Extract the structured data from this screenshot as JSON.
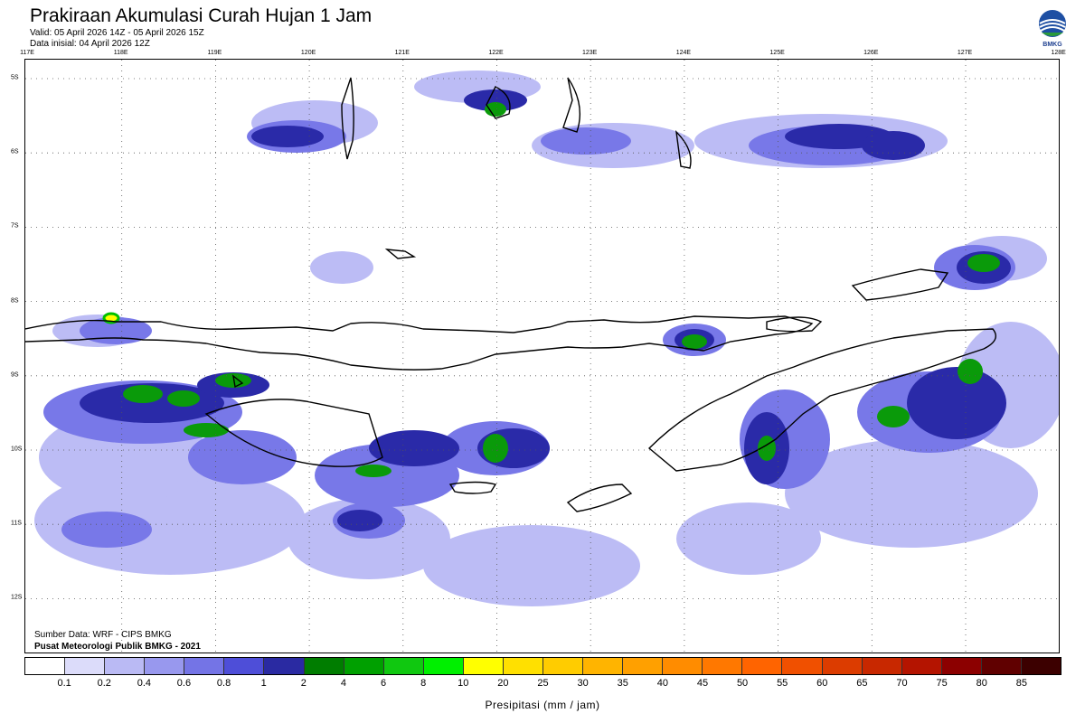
{
  "header": {
    "title": "Prakiraan Akumulasi Curah Hujan 1 Jam",
    "valid": "Valid: 05 April 2026 14Z - 05 April 2026 15Z",
    "init": "Data inisial: 04 April 2026 12Z"
  },
  "logo": {
    "text": "BMKG",
    "icon": "bmkg-logo-icon"
  },
  "map": {
    "lon_labels": [
      "117E",
      "118E",
      "119E",
      "120E",
      "121E",
      "122E",
      "123E",
      "124E",
      "125E",
      "126E",
      "127E",
      "128E"
    ],
    "lat_labels": [
      "5S",
      "6S",
      "7S",
      "8S",
      "9S",
      "10S",
      "11S",
      "12S"
    ],
    "grid": "dotted"
  },
  "credits": {
    "source": "Sumber Data: WRF - CIPS BMKG",
    "org": "Pusat Meteorologi Publik BMKG - 2021"
  },
  "legend": {
    "title": "Presipitasi (mm / jam)",
    "ticks": [
      "0.1",
      "0.2",
      "0.4",
      "0.6",
      "0.8",
      "1",
      "2",
      "4",
      "6",
      "8",
      "10",
      "20",
      "25",
      "30",
      "35",
      "40",
      "45",
      "50",
      "55",
      "60",
      "65",
      "70",
      "75",
      "80",
      "85"
    ],
    "colors": [
      "#ffffff",
      "#dcdcfa",
      "#babaf4",
      "#9898ee",
      "#7474e6",
      "#4e4ed8",
      "#2a2aa2",
      "#007d00",
      "#00a000",
      "#10c810",
      "#00f000",
      "#ffff00",
      "#ffe000",
      "#ffcc00",
      "#ffb400",
      "#ffa000",
      "#ff8c00",
      "#ff7800",
      "#ff6400",
      "#f05000",
      "#dc3c00",
      "#c82800",
      "#b41400",
      "#8c0000",
      "#600000",
      "#3c0000"
    ]
  }
}
